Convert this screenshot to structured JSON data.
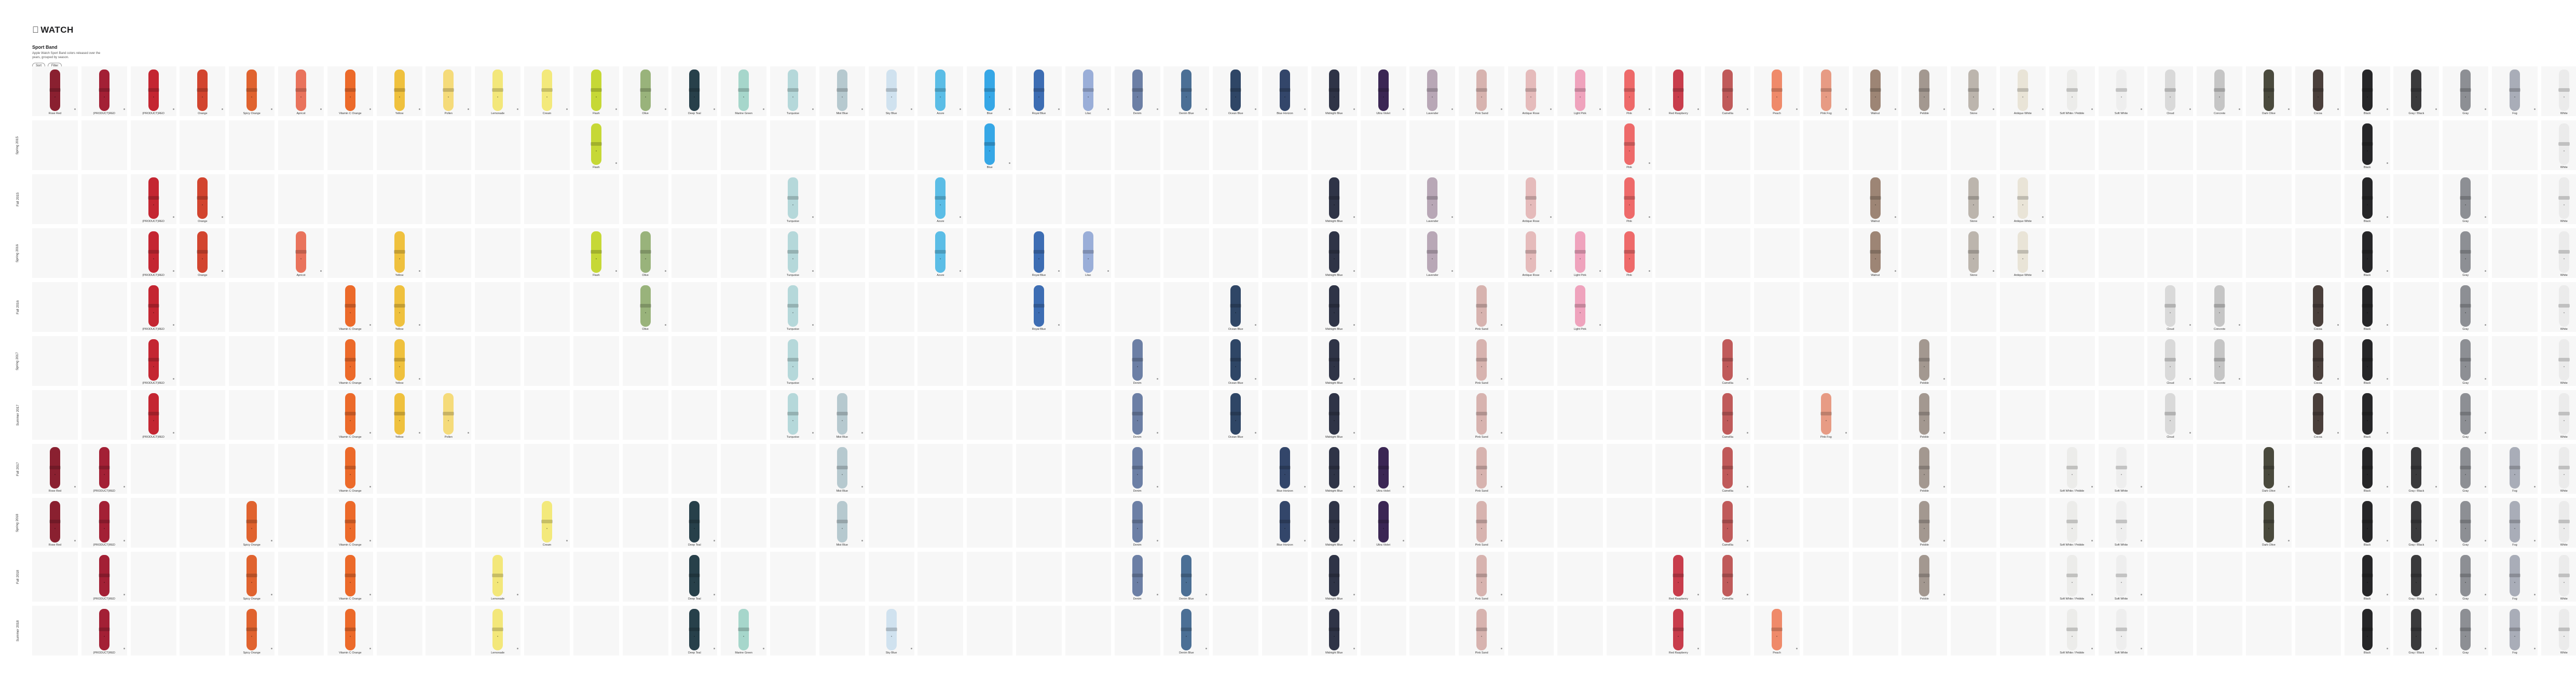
{
  "header": {
    "brand": "WATCH",
    "title": "Sport Band",
    "description": "Apple Watch Sport Band colors released over the years, grouped by season.",
    "buttons": [
      "Sort",
      "Filter"
    ]
  },
  "columns": [
    {
      "name": "Rose Red",
      "color": "#8a2030"
    },
    {
      "name": "(PRODUCT)RED",
      "color": "#a32035"
    },
    {
      "name": "(PRODUCT)RED",
      "color": "#c42632"
    },
    {
      "name": "Orange",
      "color": "#d2452f"
    },
    {
      "name": "Spicy Orange",
      "color": "#e0632f"
    },
    {
      "name": "Apricot",
      "color": "#e9735c"
    },
    {
      "name": "Vitamin C Orange",
      "color": "#ec6a2a"
    },
    {
      "name": "Yellow",
      "color": "#efc13e"
    },
    {
      "name": "Pollen",
      "color": "#f5db7a"
    },
    {
      "name": "Lemonade",
      "color": "#f3e77a"
    },
    {
      "name": "Cream",
      "color": "#f3e97b"
    },
    {
      "name": "Flash",
      "color": "#c6d836"
    },
    {
      "name": "Olive",
      "color": "#99b37b"
    },
    {
      "name": "Deep Teal",
      "color": "#27404a"
    },
    {
      "name": "Marine Green",
      "color": "#a6d6cb"
    },
    {
      "name": "Turquoise",
      "color": "#b5d8da"
    },
    {
      "name": "Mist Blue",
      "color": "#b6c9cf"
    },
    {
      "name": "Sky Blue",
      "color": "#d0e2ef"
    },
    {
      "name": "Azure",
      "color": "#5bbde6"
    },
    {
      "name": "Blue",
      "color": "#36a7e6"
    },
    {
      "name": "Royal Blue",
      "color": "#3d6db3"
    },
    {
      "name": "Lilac",
      "color": "#9aaed8"
    },
    {
      "name": "Denim",
      "color": "#6c7fa5"
    },
    {
      "name": "Denim Blue",
      "color": "#4b6f95"
    },
    {
      "name": "Ocean Blue",
      "color": "#2f4666"
    },
    {
      "name": "Blue Horizon",
      "color": "#33466a"
    },
    {
      "name": "Midnight Blue",
      "color": "#2f3447"
    },
    {
      "name": "Ultra Violet",
      "color": "#3b2654"
    },
    {
      "name": "Lavender",
      "color": "#b8a7b6"
    },
    {
      "name": "Pink Sand",
      "color": "#d7b3af"
    },
    {
      "name": "Antique Rose",
      "color": "#e5bbbb"
    },
    {
      "name": "Light Pink",
      "color": "#efa3bd"
    },
    {
      "name": "Pink",
      "color": "#ee6a6a"
    },
    {
      "name": "Red Raspberry",
      "color": "#c83d4c"
    },
    {
      "name": "Camellia",
      "color": "#c05a5a"
    },
    {
      "name": "Peach",
      "color": "#ef8a6a"
    },
    {
      "name": "Pink Fog",
      "color": "#e79b84"
    },
    {
      "name": "Walnut",
      "color": "#9d8575"
    },
    {
      "name": "Pebble",
      "color": "#a39890"
    },
    {
      "name": "Stone",
      "color": "#bcb5ad"
    },
    {
      "name": "Antique White",
      "color": "#e9e4d7"
    },
    {
      "name": "Soft White / Pebble",
      "color": "#ececea"
    },
    {
      "name": "Soft White",
      "color": "#eeeeee"
    },
    {
      "name": "Cloud",
      "color": "#d9d9d9"
    },
    {
      "name": "Concrete",
      "color": "#c5c5c5"
    },
    {
      "name": "Dark Olive",
      "color": "#4a4a3d"
    },
    {
      "name": "Cocoa",
      "color": "#4a3f3b"
    },
    {
      "name": "Black",
      "color": "#262628"
    },
    {
      "name": "Gray / Black",
      "color": "#3a3a3c"
    },
    {
      "name": "Gray",
      "color": "#8d8f94"
    },
    {
      "name": "Fog",
      "color": "#a9adb8"
    },
    {
      "name": "White",
      "color": "#ebebeb"
    }
  ],
  "header_row_label": "",
  "rows": [
    {
      "label": "Spring 2015",
      "cols": [
        11,
        19,
        32,
        47,
        51
      ]
    },
    {
      "label": "Fall 2015",
      "cols": [
        2,
        3,
        15,
        18,
        26,
        28,
        30,
        32,
        37,
        39,
        40,
        47,
        49,
        51
      ]
    },
    {
      "label": "Spring 2016",
      "cols": [
        2,
        3,
        5,
        7,
        11,
        12,
        15,
        18,
        20,
        21,
        26,
        28,
        30,
        31,
        32,
        37,
        39,
        40,
        47,
        49,
        51
      ]
    },
    {
      "label": "Fall 2016",
      "cols": [
        2,
        6,
        7,
        12,
        15,
        20,
        24,
        26,
        29,
        31,
        43,
        44,
        46,
        47,
        49,
        51
      ]
    },
    {
      "label": "Spring 2017",
      "cols": [
        2,
        6,
        7,
        15,
        22,
        24,
        26,
        29,
        34,
        38,
        43,
        44,
        46,
        47,
        49,
        51
      ]
    },
    {
      "label": "Summer 2017",
      "cols": [
        2,
        6,
        7,
        8,
        15,
        16,
        22,
        24,
        26,
        29,
        34,
        36,
        38,
        43,
        46,
        47,
        49,
        51
      ]
    },
    {
      "label": "Fall 2017",
      "cols": [
        0,
        1,
        6,
        16,
        22,
        25,
        26,
        27,
        29,
        34,
        38,
        41,
        42,
        45,
        47,
        48,
        49,
        50,
        51
      ]
    },
    {
      "label": "Spring 2018",
      "cols": [
        0,
        1,
        4,
        6,
        10,
        13,
        16,
        22,
        25,
        26,
        27,
        29,
        34,
        38,
        41,
        42,
        45,
        47,
        48,
        49,
        50,
        51
      ]
    },
    {
      "label": "Fall 2018",
      "cols": [
        1,
        4,
        6,
        9,
        13,
        22,
        23,
        26,
        29,
        33,
        34,
        38,
        41,
        42,
        47,
        48,
        49,
        50,
        51
      ]
    },
    {
      "label": "Summer 2018",
      "cols": [
        1,
        4,
        6,
        9,
        13,
        14,
        17,
        23,
        26,
        29,
        33,
        35,
        41,
        42,
        47,
        48,
        49,
        50,
        51
      ]
    }
  ]
}
